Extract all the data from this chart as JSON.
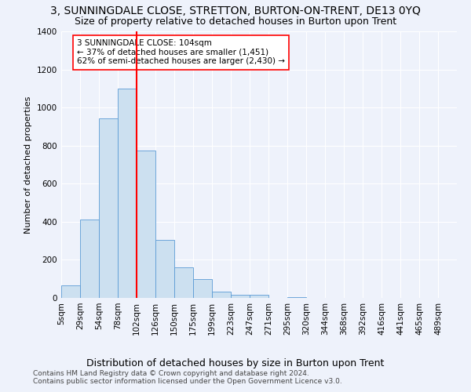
{
  "title": "3, SUNNINGDALE CLOSE, STRETTON, BURTON-ON-TRENT, DE13 0YQ",
  "subtitle": "Size of property relative to detached houses in Burton upon Trent",
  "xlabel": "Distribution of detached houses by size in Burton upon Trent",
  "ylabel": "Number of detached properties",
  "footer1": "Contains HM Land Registry data © Crown copyright and database right 2024.",
  "footer2": "Contains public sector information licensed under the Open Government Licence v3.0.",
  "bin_labels": [
    "5sqm",
    "29sqm",
    "54sqm",
    "78sqm",
    "102sqm",
    "126sqm",
    "150sqm",
    "175sqm",
    "199sqm",
    "223sqm",
    "247sqm",
    "271sqm",
    "295sqm",
    "320sqm",
    "344sqm",
    "368sqm",
    "392sqm",
    "416sqm",
    "441sqm",
    "465sqm",
    "489sqm"
  ],
  "bar_values": [
    65,
    410,
    945,
    1100,
    775,
    305,
    160,
    100,
    35,
    15,
    15,
    0,
    5,
    0,
    0,
    0,
    0,
    0,
    0,
    0
  ],
  "bar_color": "#cce0f0",
  "bar_edge_color": "#5b9bd5",
  "vline_x_index": 4,
  "vline_color": "red",
  "annotation_text": "3 SUNNINGDALE CLOSE: 104sqm\n← 37% of detached houses are smaller (1,451)\n62% of semi-detached houses are larger (2,430) →",
  "annotation_box_color": "white",
  "annotation_border_color": "red",
  "bin_edges": [
    0,
    1,
    2,
    3,
    4,
    5,
    6,
    7,
    8,
    9,
    10,
    11,
    12,
    13,
    14,
    15,
    16,
    17,
    18,
    19,
    20
  ],
  "ylim": [
    0,
    1400
  ],
  "xlim": [
    0,
    21
  ],
  "background_color": "#eef2fb",
  "grid_color": "#ffffff",
  "title_fontsize": 10,
  "subtitle_fontsize": 9,
  "ylabel_fontsize": 8,
  "xlabel_fontsize": 9,
  "tick_fontsize": 7.5,
  "footer_fontsize": 6.5
}
